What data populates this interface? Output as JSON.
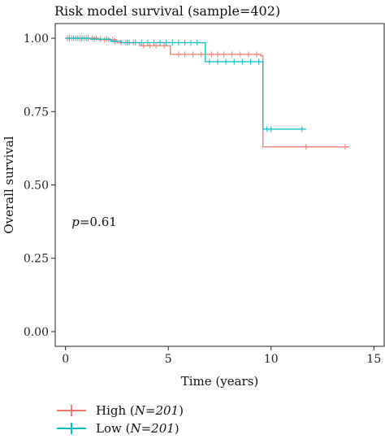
{
  "chart_data": {
    "type": "line",
    "title": "Risk model survival (sample=402)",
    "xlabel": "Time (years)",
    "ylabel": "Overall survival",
    "xlim": [
      -0.5,
      15.5
    ],
    "ylim": [
      -0.05,
      1.05
    ],
    "xticks": [
      "0",
      "5",
      "10",
      "15"
    ],
    "yticks": [
      "0.00",
      "0.25",
      "0.50",
      "0.75",
      "1.00"
    ],
    "grid": false,
    "legend_position": "bottom-left",
    "annotation": {
      "prefix": "p",
      "text": "=0.61",
      "x": 0.3,
      "y": 0.36
    },
    "series": [
      {
        "name": "High",
        "n_label": "N=201",
        "color": "#F8766D",
        "steps": [
          [
            0,
            1.0
          ],
          [
            1.6,
            0.995
          ],
          [
            2.5,
            0.985
          ],
          [
            3.6,
            0.975
          ],
          [
            5.1,
            0.945
          ],
          [
            9.5,
            0.94
          ],
          [
            9.6,
            0.63
          ],
          [
            13.8,
            0.63
          ]
        ],
        "censor": [
          0.1,
          0.3,
          0.5,
          0.7,
          0.9,
          1.1,
          1.3,
          1.5,
          1.9,
          2.1,
          2.3,
          2.7,
          2.9,
          3.1,
          3.3,
          3.8,
          4.1,
          4.4,
          4.8,
          5.5,
          5.8,
          6.2,
          6.6,
          7.1,
          7.4,
          7.7,
          8.1,
          8.5,
          8.9,
          9.3,
          11.7,
          13.6
        ]
      },
      {
        "name": "Low",
        "n_label": "N=201",
        "color": "#00BFC4",
        "steps": [
          [
            0,
            1.0
          ],
          [
            1.2,
            0.997
          ],
          [
            2.2,
            0.99
          ],
          [
            2.7,
            0.985
          ],
          [
            6.8,
            0.92
          ],
          [
            9.5,
            0.92
          ],
          [
            9.6,
            0.69
          ],
          [
            11.7,
            0.69
          ]
        ],
        "censor": [
          0.2,
          0.4,
          0.6,
          0.8,
          1.0,
          1.4,
          1.7,
          2.0,
          2.4,
          3.0,
          3.4,
          3.7,
          4.0,
          4.3,
          4.6,
          4.9,
          5.2,
          5.5,
          5.8,
          6.1,
          6.4,
          7.0,
          7.4,
          7.8,
          8.2,
          8.6,
          9.0,
          9.4,
          9.8,
          10.0,
          11.5
        ]
      }
    ]
  }
}
